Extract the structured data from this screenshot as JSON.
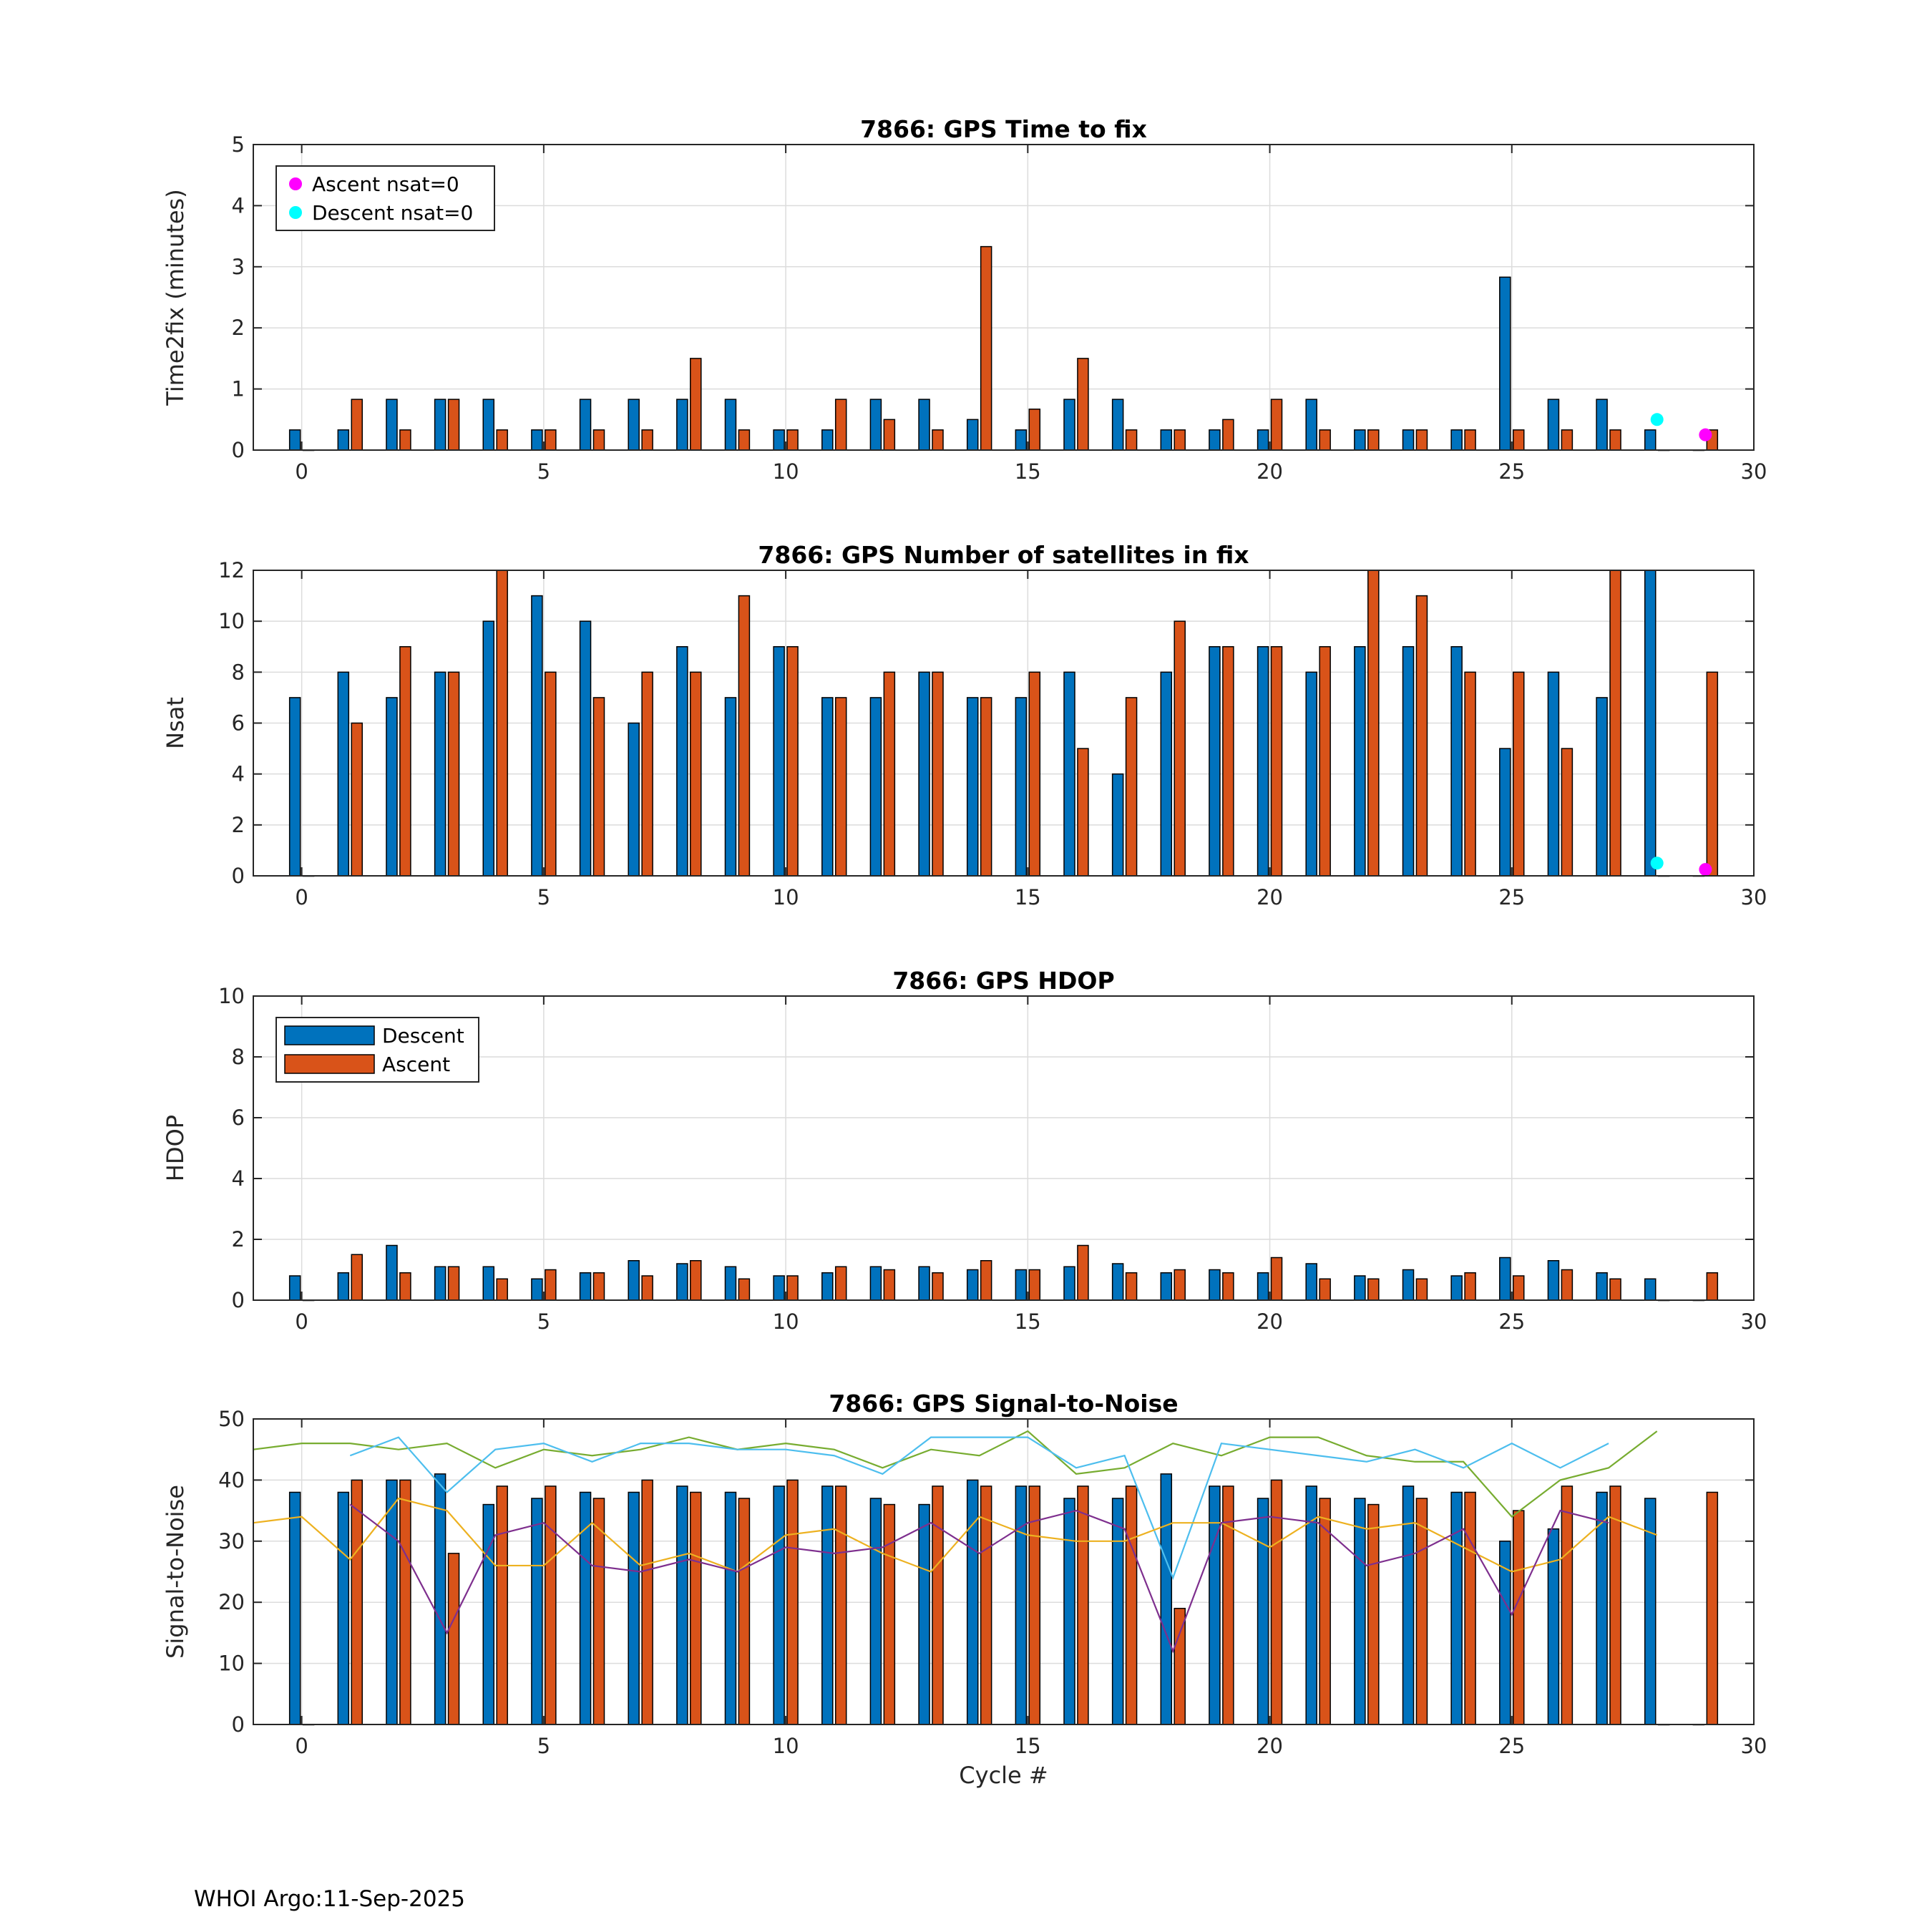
{
  "footer": "WHOI Argo:11-Sep-2025",
  "colors": {
    "descent": "#0072BD",
    "ascent": "#D95319",
    "ascent_nsat0": "#FF00FF",
    "descent_nsat0": "#00FFFF",
    "snr_green": "#77AC30",
    "snr_cyan": "#4DBEEE",
    "snr_yellow": "#EDB120",
    "snr_purple": "#7E2F8E"
  },
  "chart_data": [
    {
      "type": "bar",
      "title": "7866: GPS Time to fix",
      "xlabel": "",
      "ylabel": "Time2fix (minutes)",
      "xlim": [
        -1,
        30
      ],
      "ylim": [
        0,
        5
      ],
      "xticks": [
        0,
        5,
        10,
        15,
        20,
        25,
        30
      ],
      "yticks": [
        0,
        1,
        2,
        3,
        4,
        5
      ],
      "grid": true,
      "legend": {
        "placement": "top-left",
        "entries": [
          "Ascent nsat=0",
          "Descent nsat=0"
        ]
      },
      "categories": [
        0,
        1,
        2,
        3,
        4,
        5,
        6,
        7,
        8,
        9,
        10,
        11,
        12,
        13,
        14,
        15,
        16,
        17,
        18,
        19,
        20,
        21,
        22,
        23,
        24,
        25,
        26,
        27,
        28,
        29
      ],
      "series": [
        {
          "name": "Descent",
          "values": [
            0.33,
            0.33,
            0.83,
            0.83,
            0.83,
            0.33,
            0.83,
            0.83,
            0.83,
            0.83,
            0.33,
            0.33,
            0.83,
            0.83,
            0.5,
            0.33,
            0.83,
            0.83,
            0.33,
            0.33,
            0.33,
            0.83,
            0.33,
            0.33,
            0.33,
            2.83,
            0.83,
            0.83,
            0.33,
            0
          ]
        },
        {
          "name": "Ascent",
          "values": [
            0,
            0.83,
            0.33,
            0.83,
            0.33,
            0.33,
            0.33,
            0.33,
            1.5,
            0.33,
            0.33,
            0.83,
            0.5,
            0.33,
            3.33,
            0.67,
            1.5,
            0.33,
            0.33,
            0.5,
            0.83,
            0.33,
            0.33,
            0.33,
            0.33,
            0.33,
            0.33,
            0.33,
            0,
            0.33
          ]
        }
      ],
      "markers": [
        {
          "name": "Ascent nsat=0",
          "x": 29,
          "y": 0.25
        },
        {
          "name": "Descent nsat=0",
          "x": 28,
          "y": 0.5
        }
      ]
    },
    {
      "type": "bar",
      "title": "7866: GPS Number of satellites in fix",
      "xlabel": "",
      "ylabel": "Nsat",
      "xlim": [
        -1,
        30
      ],
      "ylim": [
        0,
        12
      ],
      "xticks": [
        0,
        5,
        10,
        15,
        20,
        25,
        30
      ],
      "yticks": [
        0,
        2,
        4,
        6,
        8,
        10,
        12
      ],
      "grid": true,
      "categories": [
        0,
        1,
        2,
        3,
        4,
        5,
        6,
        7,
        8,
        9,
        10,
        11,
        12,
        13,
        14,
        15,
        16,
        17,
        18,
        19,
        20,
        21,
        22,
        23,
        24,
        25,
        26,
        27,
        28,
        29
      ],
      "series": [
        {
          "name": "Descent",
          "values": [
            7,
            8,
            7,
            8,
            10,
            11,
            10,
            6,
            9,
            7,
            9,
            7,
            7,
            8,
            7,
            7,
            8,
            4,
            8,
            9,
            9,
            8,
            9,
            9,
            9,
            5,
            8,
            7,
            12,
            0
          ]
        },
        {
          "name": "Ascent",
          "values": [
            0,
            6,
            9,
            8,
            12,
            8,
            7,
            8,
            8,
            11,
            9,
            7,
            8,
            8,
            7,
            8,
            5,
            7,
            10,
            9,
            9,
            9,
            12,
            11,
            8,
            8,
            5,
            12,
            0,
            8
          ]
        }
      ],
      "markers": [
        {
          "name": "Ascent nsat=0",
          "x": 29,
          "y": 0.25
        },
        {
          "name": "Descent nsat=0",
          "x": 28,
          "y": 0.5
        }
      ]
    },
    {
      "type": "bar",
      "title": "7866: GPS HDOP",
      "xlabel": "",
      "ylabel": "HDOP",
      "xlim": [
        -1,
        30
      ],
      "ylim": [
        0,
        10
      ],
      "xticks": [
        0,
        5,
        10,
        15,
        20,
        25,
        30
      ],
      "yticks": [
        0,
        2,
        4,
        6,
        8,
        10
      ],
      "grid": true,
      "legend": {
        "placement": "top-left",
        "entries": [
          "Descent",
          "Ascent"
        ]
      },
      "categories": [
        0,
        1,
        2,
        3,
        4,
        5,
        6,
        7,
        8,
        9,
        10,
        11,
        12,
        13,
        14,
        15,
        16,
        17,
        18,
        19,
        20,
        21,
        22,
        23,
        24,
        25,
        26,
        27,
        28,
        29
      ],
      "series": [
        {
          "name": "Descent",
          "values": [
            0.8,
            0.9,
            1.8,
            1.1,
            1.1,
            0.7,
            0.9,
            1.3,
            1.2,
            1.1,
            0.8,
            0.9,
            1.1,
            1.1,
            1.0,
            1.0,
            1.1,
            1.2,
            0.9,
            1.0,
            0.9,
            1.2,
            0.8,
            1.0,
            0.8,
            1.4,
            1.3,
            0.9,
            0.7,
            0
          ]
        },
        {
          "name": "Ascent",
          "values": [
            0,
            1.5,
            0.9,
            1.1,
            0.7,
            1.0,
            0.9,
            0.8,
            1.3,
            0.7,
            0.8,
            1.1,
            1.0,
            0.9,
            1.3,
            1.0,
            1.8,
            0.9,
            1.0,
            0.9,
            1.4,
            0.7,
            0.7,
            0.7,
            0.9,
            0.8,
            1.0,
            0.7,
            0,
            0.9
          ]
        }
      ]
    },
    {
      "type": "bar",
      "title": "7866: GPS Signal-to-Noise",
      "xlabel": "Cycle #",
      "ylabel": "Signal-to-Noise",
      "xlim": [
        -1,
        30
      ],
      "ylim": [
        0,
        50
      ],
      "xticks": [
        0,
        5,
        10,
        15,
        20,
        25,
        30
      ],
      "yticks": [
        0,
        10,
        20,
        30,
        40,
        50
      ],
      "grid": true,
      "categories": [
        0,
        1,
        2,
        3,
        4,
        5,
        6,
        7,
        8,
        9,
        10,
        11,
        12,
        13,
        14,
        15,
        16,
        17,
        18,
        19,
        20,
        21,
        22,
        23,
        24,
        25,
        26,
        27,
        28,
        29
      ],
      "series": [
        {
          "name": "Descent",
          "values": [
            38,
            38,
            40,
            41,
            36,
            37,
            38,
            38,
            39,
            38,
            39,
            39,
            37,
            36,
            40,
            39,
            37,
            37,
            41,
            39,
            37,
            39,
            37,
            39,
            38,
            30,
            32,
            38,
            37,
            0
          ]
        },
        {
          "name": "Ascent",
          "values": [
            0,
            40,
            40,
            28,
            39,
            39,
            37,
            40,
            38,
            37,
            40,
            39,
            36,
            39,
            39,
            39,
            39,
            39,
            19,
            39,
            40,
            37,
            36,
            37,
            38,
            35,
            39,
            39,
            0,
            38
          ]
        }
      ],
      "lines": [
        {
          "name": "green",
          "x": [
            -1,
            0,
            1,
            2,
            3,
            4,
            5,
            6,
            7,
            8,
            9,
            10,
            11,
            12,
            13,
            14,
            15,
            16,
            17,
            18,
            19,
            20,
            21,
            22,
            23,
            24,
            25,
            26,
            27,
            28
          ],
          "y": [
            45,
            46,
            46,
            45,
            46,
            42,
            45,
            44,
            45,
            47,
            45,
            46,
            45,
            42,
            45,
            44,
            48,
            41,
            42,
            46,
            44,
            47,
            47,
            44,
            43,
            43,
            34,
            40,
            42,
            48
          ]
        },
        {
          "name": "cyan",
          "x": [
            1,
            2,
            3,
            4,
            5,
            6,
            7,
            8,
            9,
            10,
            11,
            12,
            13,
            14,
            15,
            16,
            17,
            18,
            19,
            20,
            21,
            22,
            23,
            24,
            25,
            26,
            27
          ],
          "y": [
            44,
            47,
            38,
            45,
            46,
            43,
            46,
            46,
            45,
            45,
            44,
            41,
            47,
            47,
            47,
            42,
            44,
            24,
            46,
            45,
            44,
            43,
            45,
            42,
            46,
            42,
            46
          ]
        },
        {
          "name": "yellow",
          "x": [
            -1,
            0,
            1,
            2,
            3,
            4,
            5,
            6,
            7,
            8,
            9,
            10,
            11,
            12,
            13,
            14,
            15,
            16,
            17,
            18,
            19,
            20,
            21,
            22,
            23,
            24,
            25,
            26,
            27,
            28
          ],
          "y": [
            33,
            34,
            27,
            37,
            35,
            26,
            26,
            33,
            26,
            28,
            25,
            31,
            32,
            28,
            25,
            34,
            31,
            30,
            30,
            33,
            33,
            29,
            34,
            32,
            33,
            29,
            25,
            27,
            34,
            31
          ]
        },
        {
          "name": "purple",
          "x": [
            1,
            2,
            3,
            4,
            5,
            6,
            7,
            8,
            9,
            10,
            11,
            12,
            13,
            14,
            15,
            16,
            17,
            18,
            19,
            20,
            21,
            22,
            23,
            24,
            25,
            26,
            27
          ],
          "y": [
            36,
            30,
            15,
            31,
            33,
            26,
            25,
            27,
            25,
            29,
            28,
            29,
            33,
            28,
            33,
            35,
            32,
            12,
            33,
            34,
            33,
            26,
            28,
            32,
            18,
            35,
            33
          ]
        }
      ]
    }
  ]
}
